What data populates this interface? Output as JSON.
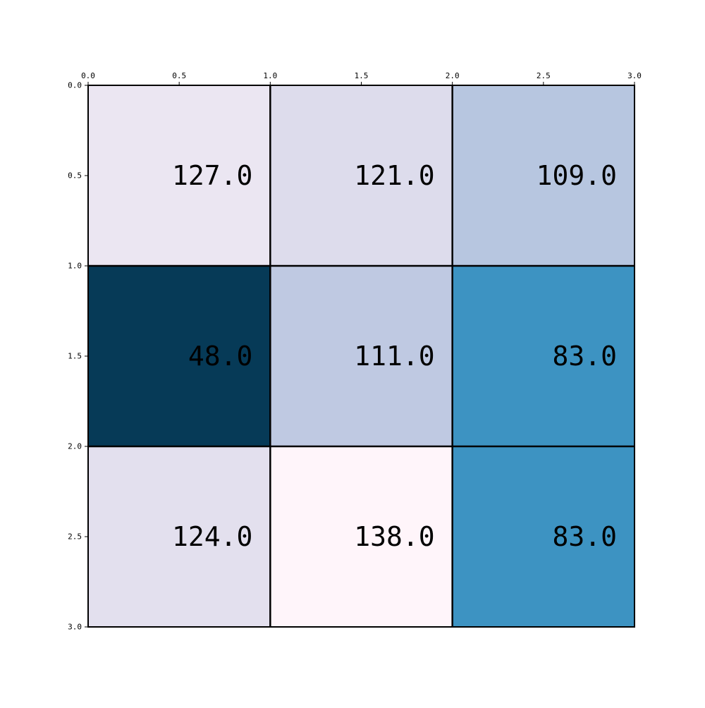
{
  "chart_data": {
    "type": "heatmap",
    "title": "",
    "xlabel": "",
    "ylabel": "",
    "rows": 3,
    "cols": 3,
    "values": [
      [
        127.0,
        121.0,
        109.0
      ],
      [
        48.0,
        111.0,
        83.0
      ],
      [
        124.0,
        138.0,
        83.0
      ]
    ],
    "cell_labels": [
      [
        "127.0",
        "121.0",
        "109.0"
      ],
      [
        "48.0",
        "111.0",
        "83.0"
      ],
      [
        "124.0",
        "138.0",
        "83.0"
      ]
    ],
    "cell_colors": [
      [
        "#ebe6f2",
        "#dddcec",
        "#b7c6e0"
      ],
      [
        "#063a57",
        "#bfc9e2",
        "#3d93c2"
      ],
      [
        "#e3e0ee",
        "#fff5fa",
        "#3d93c2"
      ]
    ],
    "colormap": "PuBu",
    "color_range": [
      48.0,
      138.0
    ],
    "xlim": [
      0.0,
      3.0
    ],
    "ylim": [
      0.0,
      3.0
    ],
    "y_inverted": true,
    "x_axis_position": "top",
    "x_ticks": [
      0.0,
      0.5,
      1.0,
      1.5,
      2.0,
      2.5,
      3.0
    ],
    "x_tick_labels": [
      "0.0",
      "0.5",
      "1.0",
      "1.5",
      "2.0",
      "2.5",
      "3.0"
    ],
    "y_ticks": [
      0.0,
      0.5,
      1.0,
      1.5,
      2.0,
      2.5,
      3.0
    ],
    "y_tick_labels": [
      "0.0",
      "0.5",
      "1.0",
      "1.5",
      "2.0",
      "2.5",
      "3.0"
    ],
    "grid": true,
    "legend": "none"
  }
}
